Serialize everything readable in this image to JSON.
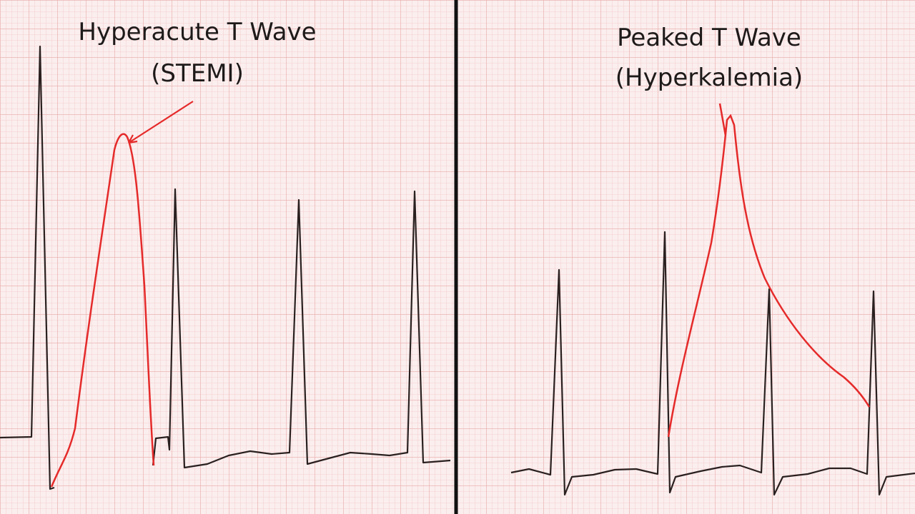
{
  "panels": [
    {
      "title_lines": [
        "Hyperacute T Wave",
        "(STEMI)"
      ]
    },
    {
      "title_lines": [
        "Peaked T Wave",
        "(Hyperkalemia)"
      ]
    }
  ]
}
